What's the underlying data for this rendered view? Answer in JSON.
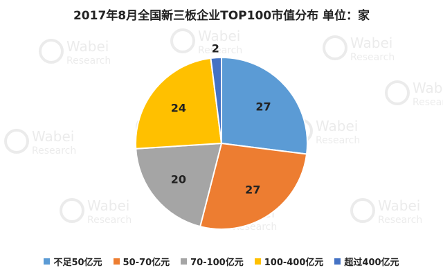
{
  "chart_data": {
    "type": "pie",
    "title": "2017年8月全国新三板企业TOP100市值分布 单位：家",
    "legend_position": "bottom",
    "categories": [
      "不足50亿元",
      "50-70亿元",
      "70-100亿元",
      "100-400亿元",
      "超过400亿元"
    ],
    "values": [
      27,
      27,
      20,
      24,
      2
    ],
    "colors": [
      "#5b9bd5",
      "#ed7d31",
      "#a5a5a5",
      "#ffc000",
      "#4472c4"
    ]
  },
  "watermark": {
    "brand": "Wabei",
    "sub": "Research"
  }
}
